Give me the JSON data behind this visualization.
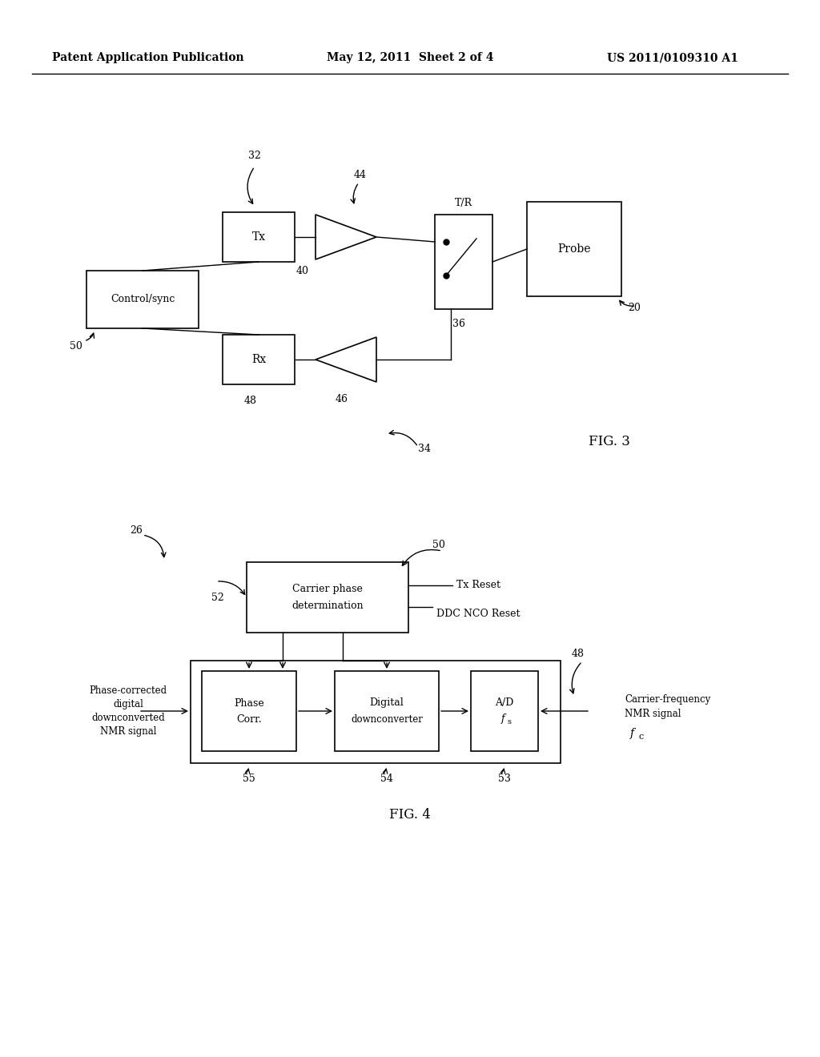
{
  "bg_color": "#ffffff",
  "header_left": "Patent Application Publication",
  "header_mid": "May 12, 2011  Sheet 2 of 4",
  "header_right": "US 2011/0109310 A1",
  "fig3_label": "FIG. 3",
  "fig4_label": "FIG. 4",
  "line_color": "#000000",
  "box_color": "#000000",
  "text_color": "#000000"
}
